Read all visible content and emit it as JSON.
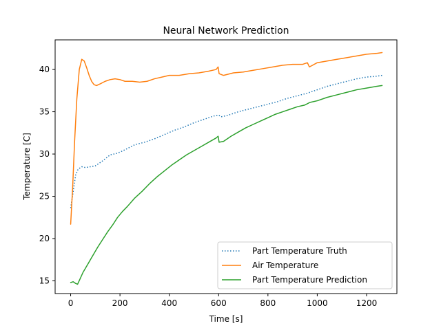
{
  "chart_data": {
    "type": "line",
    "title": "Neural Network Prediction",
    "xlabel": "Time [s]",
    "ylabel": "Temperature [C]",
    "xlim": [
      -63,
      1323
    ],
    "ylim": [
      13.5,
      43.5
    ],
    "xticks": [
      0,
      200,
      400,
      600,
      800,
      1000,
      1200
    ],
    "yticks": [
      15,
      20,
      25,
      30,
      35,
      40
    ],
    "grid": false,
    "legend_position": "lower-right",
    "series": [
      {
        "name": "Part Temperature Truth",
        "color": "#1f77b4",
        "style": "dotted",
        "points": [
          [
            0,
            23.6
          ],
          [
            10,
            25.5
          ],
          [
            20,
            27.5
          ],
          [
            30,
            28.2
          ],
          [
            45,
            28.5
          ],
          [
            60,
            28.4
          ],
          [
            80,
            28.5
          ],
          [
            100,
            28.6
          ],
          [
            130,
            29.2
          ],
          [
            160,
            29.9
          ],
          [
            190,
            30.1
          ],
          [
            220,
            30.5
          ],
          [
            260,
            31.1
          ],
          [
            300,
            31.4
          ],
          [
            340,
            31.8
          ],
          [
            380,
            32.3
          ],
          [
            420,
            32.8
          ],
          [
            460,
            33.2
          ],
          [
            500,
            33.7
          ],
          [
            540,
            34.1
          ],
          [
            580,
            34.5
          ],
          [
            600,
            34.6
          ],
          [
            610,
            34.4
          ],
          [
            640,
            34.6
          ],
          [
            680,
            35.0
          ],
          [
            720,
            35.3
          ],
          [
            760,
            35.6
          ],
          [
            800,
            35.9
          ],
          [
            840,
            36.2
          ],
          [
            880,
            36.6
          ],
          [
            920,
            36.9
          ],
          [
            960,
            37.2
          ],
          [
            1000,
            37.6
          ],
          [
            1040,
            38.0
          ],
          [
            1080,
            38.3
          ],
          [
            1120,
            38.6
          ],
          [
            1160,
            38.9
          ],
          [
            1200,
            39.1
          ],
          [
            1240,
            39.2
          ],
          [
            1263,
            39.3
          ]
        ]
      },
      {
        "name": "Air Temperature",
        "color": "#ff7f0e",
        "style": "solid",
        "points": [
          [
            0,
            21.7
          ],
          [
            8,
            26.0
          ],
          [
            16,
            31.5
          ],
          [
            25,
            36.5
          ],
          [
            35,
            40.0
          ],
          [
            45,
            41.2
          ],
          [
            55,
            41.0
          ],
          [
            65,
            40.2
          ],
          [
            75,
            39.3
          ],
          [
            85,
            38.6
          ],
          [
            95,
            38.2
          ],
          [
            105,
            38.1
          ],
          [
            120,
            38.3
          ],
          [
            140,
            38.6
          ],
          [
            160,
            38.8
          ],
          [
            180,
            38.9
          ],
          [
            200,
            38.8
          ],
          [
            220,
            38.6
          ],
          [
            250,
            38.6
          ],
          [
            280,
            38.5
          ],
          [
            310,
            38.6
          ],
          [
            340,
            38.9
          ],
          [
            370,
            39.1
          ],
          [
            400,
            39.3
          ],
          [
            440,
            39.3
          ],
          [
            480,
            39.5
          ],
          [
            520,
            39.6
          ],
          [
            560,
            39.8
          ],
          [
            590,
            40.0
          ],
          [
            598,
            40.3
          ],
          [
            602,
            39.5
          ],
          [
            620,
            39.3
          ],
          [
            660,
            39.6
          ],
          [
            700,
            39.7
          ],
          [
            740,
            39.9
          ],
          [
            780,
            40.1
          ],
          [
            820,
            40.3
          ],
          [
            860,
            40.5
          ],
          [
            900,
            40.6
          ],
          [
            940,
            40.6
          ],
          [
            960,
            40.8
          ],
          [
            968,
            40.3
          ],
          [
            1000,
            40.8
          ],
          [
            1040,
            41.0
          ],
          [
            1080,
            41.2
          ],
          [
            1120,
            41.4
          ],
          [
            1160,
            41.6
          ],
          [
            1200,
            41.8
          ],
          [
            1240,
            41.9
          ],
          [
            1263,
            42.0
          ]
        ]
      },
      {
        "name": "Part Temperature Prediction",
        "color": "#2ca02c",
        "style": "solid",
        "points": [
          [
            0,
            14.8
          ],
          [
            10,
            14.9
          ],
          [
            20,
            14.7
          ],
          [
            28,
            14.6
          ],
          [
            36,
            15.1
          ],
          [
            50,
            16.0
          ],
          [
            70,
            17.0
          ],
          [
            90,
            18.0
          ],
          [
            110,
            19.0
          ],
          [
            130,
            19.9
          ],
          [
            150,
            20.8
          ],
          [
            170,
            21.6
          ],
          [
            190,
            22.5
          ],
          [
            210,
            23.2
          ],
          [
            230,
            23.8
          ],
          [
            260,
            24.8
          ],
          [
            290,
            25.6
          ],
          [
            320,
            26.5
          ],
          [
            350,
            27.3
          ],
          [
            380,
            28.0
          ],
          [
            410,
            28.7
          ],
          [
            440,
            29.3
          ],
          [
            470,
            29.9
          ],
          [
            500,
            30.4
          ],
          [
            530,
            30.9
          ],
          [
            560,
            31.4
          ],
          [
            590,
            31.9
          ],
          [
            598,
            32.1
          ],
          [
            602,
            31.4
          ],
          [
            620,
            31.5
          ],
          [
            650,
            32.1
          ],
          [
            680,
            32.6
          ],
          [
            710,
            33.1
          ],
          [
            740,
            33.5
          ],
          [
            770,
            33.9
          ],
          [
            800,
            34.3
          ],
          [
            830,
            34.7
          ],
          [
            860,
            35.0
          ],
          [
            890,
            35.3
          ],
          [
            920,
            35.6
          ],
          [
            950,
            35.8
          ],
          [
            970,
            36.1
          ],
          [
            1000,
            36.3
          ],
          [
            1040,
            36.7
          ],
          [
            1080,
            37.0
          ],
          [
            1120,
            37.3
          ],
          [
            1160,
            37.6
          ],
          [
            1200,
            37.8
          ],
          [
            1240,
            38.0
          ],
          [
            1263,
            38.1
          ]
        ]
      }
    ]
  }
}
